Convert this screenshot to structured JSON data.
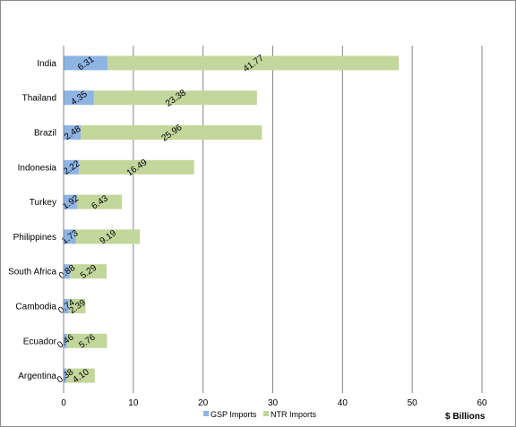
{
  "chart_data": {
    "type": "bar",
    "orientation": "horizontal",
    "stacked": true,
    "categories": [
      "India",
      "Thailand",
      "Brazil",
      "Indonesia",
      "Turkey",
      "Philippines",
      "South Africa",
      "Cambodia",
      "Ecuador",
      "Argentina"
    ],
    "series": [
      {
        "name": "GSP Imports",
        "color": "#8eb4e3",
        "values": [
          6.31,
          4.35,
          2.48,
          2.22,
          1.92,
          1.73,
          0.88,
          0.74,
          0.46,
          0.38
        ],
        "labels": [
          "6.31",
          "4.35",
          "2.48",
          "2.22",
          "1.92",
          "1.73",
          "0.88",
          "0.74",
          "0.46",
          "0.38"
        ]
      },
      {
        "name": "NTR Imports",
        "color": "#c3d69b",
        "values": [
          41.77,
          23.38,
          25.96,
          16.49,
          6.43,
          9.19,
          5.29,
          2.39,
          5.76,
          4.1
        ],
        "labels": [
          "41.77",
          "23.38",
          "25.96",
          "16.49",
          "6.43",
          "9.19",
          "5.29",
          "2.39",
          "5.76",
          "4.10"
        ]
      }
    ],
    "xlim": [
      0,
      60
    ],
    "xticks": [
      "0",
      "10",
      "20",
      "30",
      "40",
      "50",
      "60"
    ],
    "xlabel": "$ Billions",
    "grid": "vertical",
    "legend_position": "bottom"
  }
}
